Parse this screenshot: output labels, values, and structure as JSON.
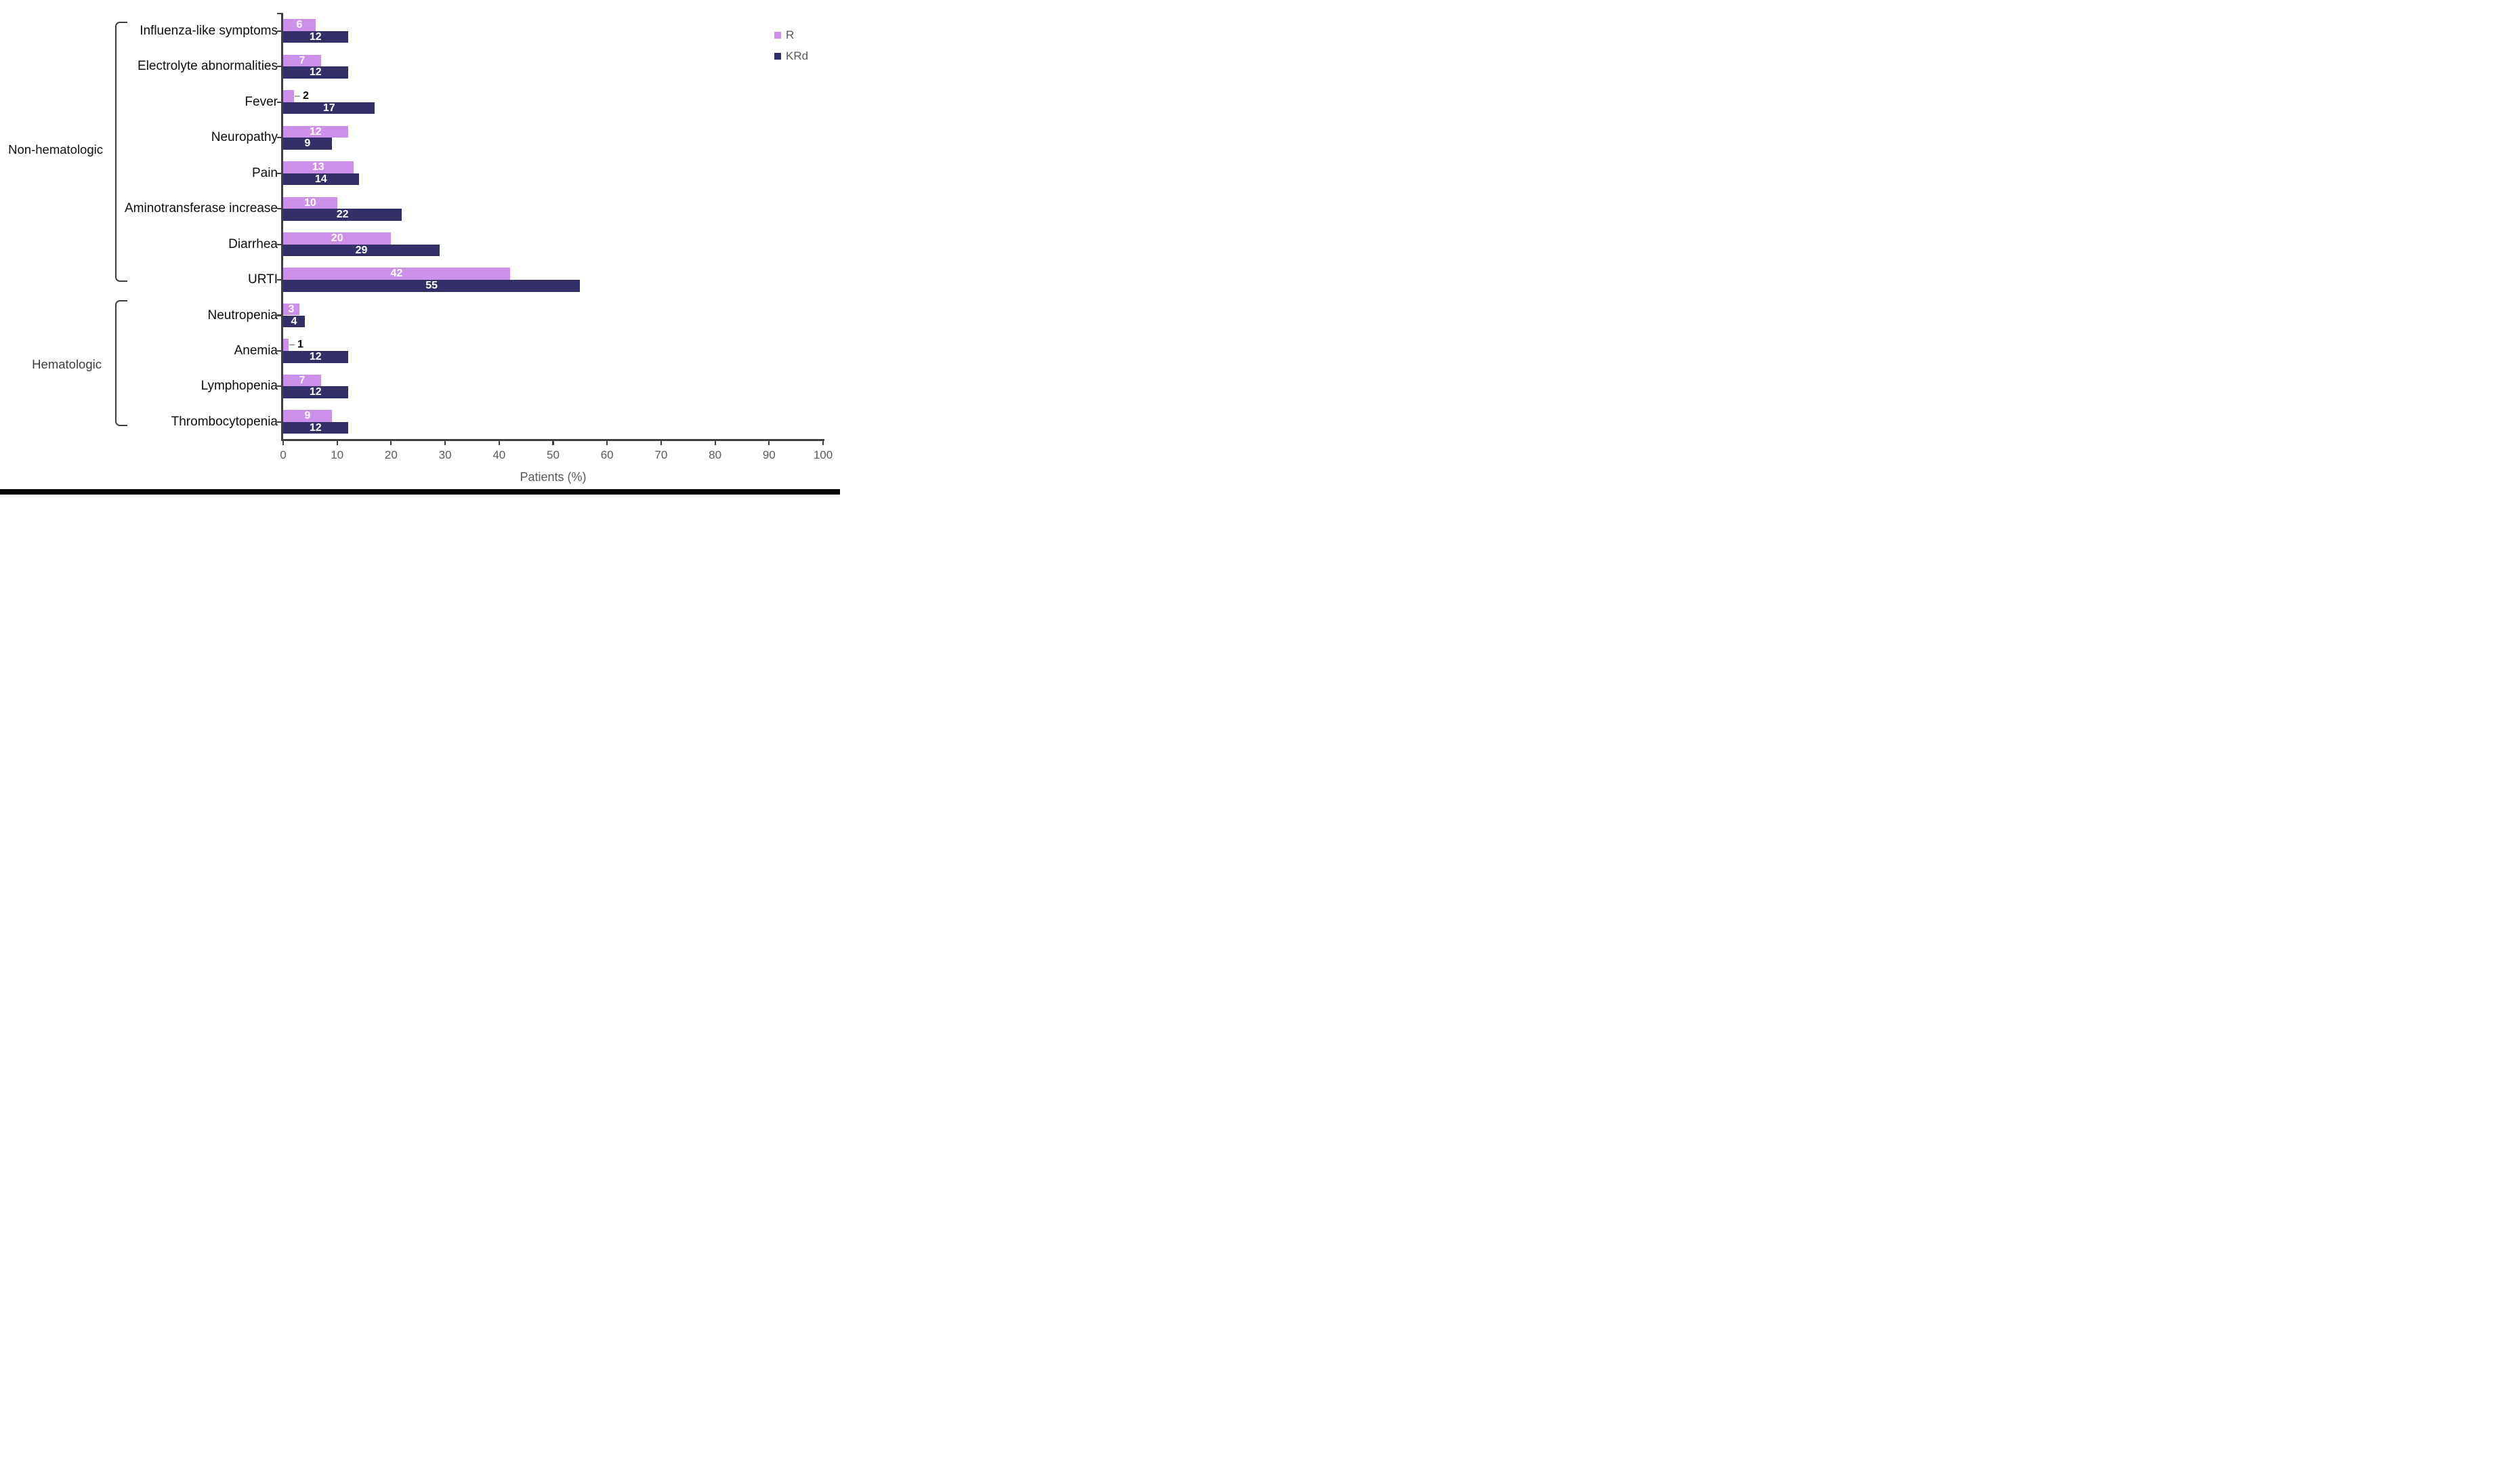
{
  "chart_data": {
    "type": "bar",
    "orientation": "horizontal",
    "xlabel": "Patients (%)",
    "x_axis": {
      "min": 0,
      "max": 100,
      "tick_interval": 10,
      "tick_labels": [
        "0",
        "10",
        "20",
        "30",
        "40",
        "50",
        "60",
        "70",
        "80",
        "90",
        "100"
      ]
    },
    "categories": [
      "Influenza-like symptoms",
      "Electrolyte abnormalities",
      "Fever",
      "Neuropathy",
      "Pain",
      "Aminotransferase increase",
      "Diarrhea",
      "URTI",
      "Neutropenia",
      "Anemia",
      "Lymphopenia",
      "Thrombocytopenia"
    ],
    "series": [
      {
        "name": "R",
        "color": "#cc90ea",
        "values": [
          6,
          7,
          2,
          12,
          13,
          10,
          20,
          42,
          3,
          1,
          7,
          9
        ]
      },
      {
        "name": "KRd",
        "color": "#333069",
        "values": [
          12,
          12,
          17,
          9,
          14,
          22,
          29,
          55,
          4,
          12,
          12,
          12
        ]
      }
    ],
    "groups": [
      {
        "label": "Non-hematologic",
        "start_category": 0,
        "end_category": 7,
        "label_color": "#111111"
      },
      {
        "label": "Hematologic",
        "start_category": 8,
        "end_category": 11,
        "label_color": "#3d3d3d"
      }
    ],
    "legend": {
      "position": "top-right",
      "entries": [
        "R",
        "KRd"
      ]
    },
    "grid": false
  },
  "style": {
    "axis_color": "#3f3f3f",
    "tick_label_color": "#595959",
    "category_label_color": "#0d0d0d",
    "inside_value_label_color": "#ffffff",
    "outside_value_label_color": "#000000",
    "leader_line_color": "#a6a6a6",
    "bottom_strip_color": "#000000",
    "background_color": "#ffffff"
  }
}
